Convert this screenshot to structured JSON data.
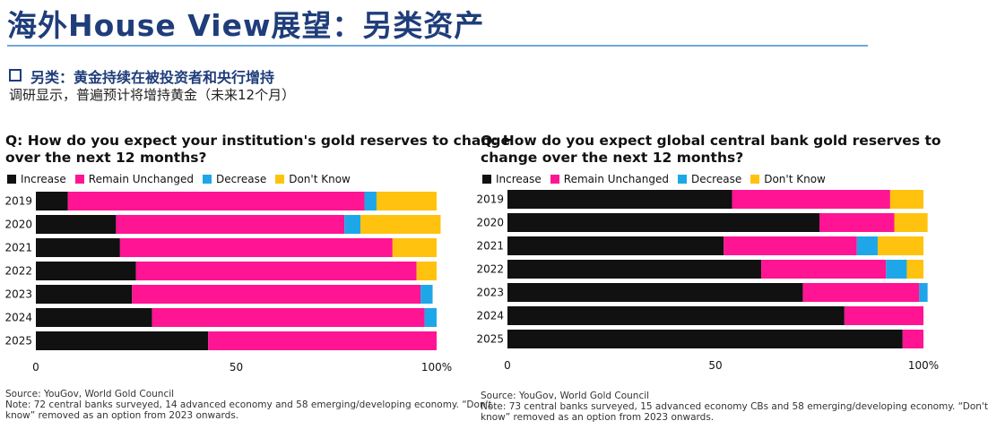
{
  "page": {
    "title": "海外House View展望：另类资产",
    "subtitle": "另类：黄金持续在被投资者和央行增持",
    "description": "调研显示，普遍预计将增持黄金（未来12个月）"
  },
  "colors": {
    "increase": "#111111",
    "remain": "#ff1493",
    "decrease": "#1ea7e8",
    "dontknow": "#ffc20e",
    "title": "#1f3d7a"
  },
  "chart_data": [
    {
      "type": "bar",
      "orientation": "horizontal",
      "stacked": true,
      "title_lines": [
        "Q: How do you expect your institution's gold reserves to change",
        "over the next 12 months?"
      ],
      "categories": [
        "2019",
        "2020",
        "2021",
        "2022",
        "2023",
        "2024",
        "2025"
      ],
      "series": [
        {
          "name": "Increase",
          "color_key": "increase",
          "values": [
            8,
            20,
            21,
            25,
            24,
            29,
            43
          ]
        },
        {
          "name": "Remain Unchanged",
          "color_key": "remain",
          "values": [
            74,
            57,
            68,
            70,
            72,
            68,
            57
          ]
        },
        {
          "name": "Decrease",
          "color_key": "decrease",
          "values": [
            3,
            4,
            0,
            0,
            3,
            3,
            0
          ]
        },
        {
          "name": "Don't Know",
          "color_key": "dontknow",
          "values": [
            15,
            20,
            11,
            5,
            0,
            0,
            0
          ]
        }
      ],
      "xlim": [
        0,
        100
      ],
      "x_ticks": [
        "0",
        "50",
        "100%"
      ],
      "legend_position": "top-left",
      "grid": false,
      "source": "Source: YouGov, World Gold Council",
      "note_lines": [
        "Note: 72 central banks surveyed, 14 advanced economy and 58 emerging/developing economy. “Don't",
        "know” removed as an option from 2023 onwards."
      ]
    },
    {
      "type": "bar",
      "orientation": "horizontal",
      "stacked": true,
      "title_lines": [
        "Q: How do you expect global central bank gold reserves to",
        "change over the next 12 months?"
      ],
      "categories": [
        "2019",
        "2020",
        "2021",
        "2022",
        "2023",
        "2024",
        "2025"
      ],
      "series": [
        {
          "name": "Increase",
          "color_key": "increase",
          "values": [
            54,
            75,
            52,
            61,
            71,
            81,
            95
          ]
        },
        {
          "name": "Remain Unchanged",
          "color_key": "remain",
          "values": [
            38,
            18,
            32,
            30,
            28,
            19,
            5
          ]
        },
        {
          "name": "Decrease",
          "color_key": "decrease",
          "values": [
            0,
            0,
            5,
            5,
            2,
            0,
            0
          ]
        },
        {
          "name": "Don't Know",
          "color_key": "dontknow",
          "values": [
            8,
            8,
            11,
            4,
            0,
            0,
            0
          ]
        }
      ],
      "xlim": [
        0,
        100
      ],
      "x_ticks": [
        "0",
        "50",
        "100%"
      ],
      "legend_position": "top-left",
      "grid": false,
      "source": "Source: YouGov, World Gold Council",
      "note_lines": [
        "Note: 73 central banks surveyed, 15 advanced economy CBs and 58 emerging/developing economy. “Don't",
        "know” removed as an option from 2023 onwards."
      ]
    }
  ]
}
